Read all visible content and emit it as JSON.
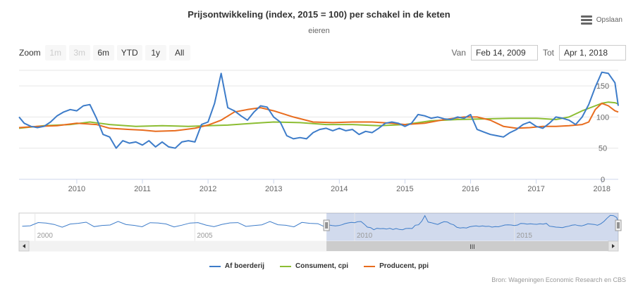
{
  "header": {
    "title": "Prijsontwikkeling (index, 2015 = 100) per schakel in de keten",
    "subtitle": "eieren",
    "export_label": "Opslaan"
  },
  "range_selector": {
    "zoom_label": "Zoom",
    "buttons": [
      "1m",
      "3m",
      "6m",
      "YTD",
      "1y",
      "All"
    ],
    "disabled": [
      "1m",
      "3m"
    ],
    "from_label": "Van",
    "from_value": "Feb 14, 2009",
    "to_label": "Tot",
    "to_value": "Apr 1, 2018"
  },
  "legend": {
    "items": [
      {
        "name": "Af boerderij",
        "color": "#3d7cc9"
      },
      {
        "name": "Consument, cpi",
        "color": "#8cbd33"
      },
      {
        "name": "Producent, ppi",
        "color": "#e86c1e"
      }
    ]
  },
  "credit": "Bron: Wageningen Economic Research en CBS",
  "navigator": {
    "labels": [
      "2000",
      "2005",
      "2010",
      "2015"
    ],
    "scroll_grip": "III"
  },
  "chart_data": {
    "type": "line",
    "title": "Prijsontwikkeling (index, 2015 = 100) per schakel in de keten",
    "subtitle": "eieren",
    "x_range": [
      2009.12,
      2018.25
    ],
    "ylim": [
      0,
      175
    ],
    "y_ticks": [
      0,
      50,
      100,
      150
    ],
    "x_ticks": [
      2010,
      2011,
      2012,
      2013,
      2014,
      2015,
      2016,
      2017,
      2018
    ],
    "grid": true,
    "legend_position": "bottom",
    "series": [
      {
        "name": "Af boerderij",
        "color": "#3d7cc9",
        "x": [
          2009.12,
          2009.2,
          2009.3,
          2009.4,
          2009.5,
          2009.6,
          2009.7,
          2009.8,
          2009.9,
          2010.0,
          2010.1,
          2010.2,
          2010.3,
          2010.4,
          2010.5,
          2010.6,
          2010.7,
          2010.8,
          2010.9,
          2011.0,
          2011.1,
          2011.2,
          2011.3,
          2011.4,
          2011.5,
          2011.6,
          2011.7,
          2011.8,
          2011.9,
          2012.0,
          2012.1,
          2012.2,
          2012.3,
          2012.4,
          2012.5,
          2012.6,
          2012.7,
          2012.8,
          2012.9,
          2013.0,
          2013.1,
          2013.2,
          2013.3,
          2013.4,
          2013.5,
          2013.6,
          2013.7,
          2013.8,
          2013.9,
          2014.0,
          2014.1,
          2014.2,
          2014.3,
          2014.4,
          2014.5,
          2014.6,
          2014.7,
          2014.8,
          2014.9,
          2015.0,
          2015.1,
          2015.2,
          2015.3,
          2015.4,
          2015.5,
          2015.6,
          2015.7,
          2015.8,
          2015.9,
          2016.0,
          2016.1,
          2016.2,
          2016.3,
          2016.4,
          2016.5,
          2016.6,
          2016.7,
          2016.8,
          2016.9,
          2017.0,
          2017.1,
          2017.2,
          2017.3,
          2017.4,
          2017.5,
          2017.6,
          2017.7,
          2017.8,
          2017.9,
          2018.0,
          2018.1,
          2018.2,
          2018.25
        ],
        "values": [
          100,
          90,
          85,
          83,
          85,
          92,
          102,
          108,
          112,
          110,
          118,
          120,
          98,
          72,
          68,
          50,
          62,
          58,
          60,
          55,
          62,
          52,
          60,
          52,
          50,
          60,
          62,
          60,
          88,
          92,
          122,
          170,
          115,
          110,
          102,
          95,
          108,
          118,
          116,
          100,
          92,
          70,
          65,
          67,
          65,
          75,
          80,
          82,
          78,
          82,
          78,
          80,
          72,
          77,
          75,
          82,
          90,
          92,
          90,
          85,
          90,
          104,
          102,
          98,
          100,
          97,
          96,
          100,
          98,
          104,
          80,
          76,
          72,
          70,
          68,
          75,
          80,
          88,
          92,
          85,
          82,
          90,
          100,
          98,
          95,
          88,
          100,
          120,
          148,
          172,
          170,
          155,
          118
        ]
      },
      {
        "name": "Consument, cpi",
        "color": "#8cbd33",
        "x": [
          2009.12,
          2009.5,
          2009.9,
          2010.2,
          2010.5,
          2010.9,
          2011.3,
          2011.7,
          2012.0,
          2012.3,
          2012.7,
          2013.0,
          2013.4,
          2013.8,
          2014.2,
          2014.6,
          2015.0,
          2015.4,
          2015.8,
          2016.2,
          2016.6,
          2017.0,
          2017.3,
          2017.5,
          2017.7,
          2017.9,
          2018.0,
          2018.1,
          2018.2,
          2018.25
        ],
        "values": [
          82,
          86,
          88,
          92,
          88,
          85,
          86,
          85,
          86,
          87,
          90,
          92,
          91,
          88,
          88,
          86,
          88,
          94,
          96,
          97,
          98,
          98,
          96,
          100,
          110,
          118,
          122,
          124,
          123,
          121
        ]
      },
      {
        "name": "Producent, ppi",
        "color": "#e86c1e",
        "x": [
          2009.12,
          2009.4,
          2009.7,
          2010.0,
          2010.3,
          2010.5,
          2010.8,
          2011.0,
          2011.2,
          2011.5,
          2011.8,
          2012.0,
          2012.2,
          2012.4,
          2012.6,
          2012.8,
          2013.0,
          2013.3,
          2013.6,
          2013.9,
          2014.2,
          2014.5,
          2014.8,
          2015.0,
          2015.3,
          2015.6,
          2015.9,
          2016.1,
          2016.3,
          2016.5,
          2016.7,
          2016.9,
          2017.1,
          2017.3,
          2017.5,
          2017.7,
          2017.8,
          2017.9,
          2018.0,
          2018.1,
          2018.2,
          2018.25
        ],
        "values": [
          83,
          85,
          86,
          90,
          88,
          82,
          80,
          79,
          77,
          78,
          82,
          87,
          95,
          108,
          112,
          115,
          110,
          100,
          92,
          91,
          92,
          92,
          90,
          88,
          90,
          96,
          100,
          100,
          95,
          85,
          82,
          83,
          85,
          85,
          86,
          88,
          92,
          112,
          122,
          118,
          110,
          108
        ]
      }
    ]
  }
}
